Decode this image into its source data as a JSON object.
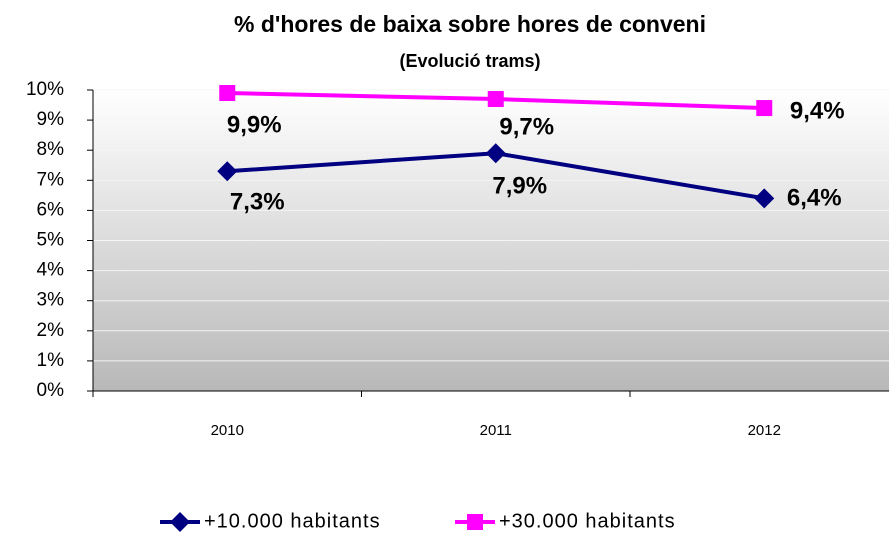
{
  "chart_data": {
    "type": "line",
    "title": "% d'hores de baixa sobre hores de conveni",
    "subtitle": "(Evolució trams)",
    "categories": [
      "2010",
      "2011",
      "2012"
    ],
    "series": [
      {
        "name": "+10.000 habitants",
        "color": "#000080",
        "marker": "diamond",
        "values": [
          7.3,
          7.9,
          6.4
        ],
        "value_labels": [
          "7,3%",
          "7,9%",
          "6,4%"
        ]
      },
      {
        "name": "+30.000 habitants",
        "color": "#ff00ff",
        "marker": "square",
        "values": [
          9.9,
          9.7,
          9.4
        ],
        "value_labels": [
          "9,9%",
          "9,7%",
          "9,4%"
        ]
      }
    ],
    "ylim": [
      0,
      10
    ],
    "yticks": [
      {
        "value": 0,
        "label": "0%"
      },
      {
        "value": 1,
        "label": "1%"
      },
      {
        "value": 2,
        "label": "2%"
      },
      {
        "value": 3,
        "label": "3%"
      },
      {
        "value": 4,
        "label": "4%"
      },
      {
        "value": 5,
        "label": "5%"
      },
      {
        "value": 6,
        "label": "6%"
      },
      {
        "value": 7,
        "label": "7%"
      },
      {
        "value": 8,
        "label": "8%"
      },
      {
        "value": 9,
        "label": "9%"
      },
      {
        "value": 10,
        "label": "10%"
      }
    ],
    "grid": true,
    "legend": "bottom"
  }
}
